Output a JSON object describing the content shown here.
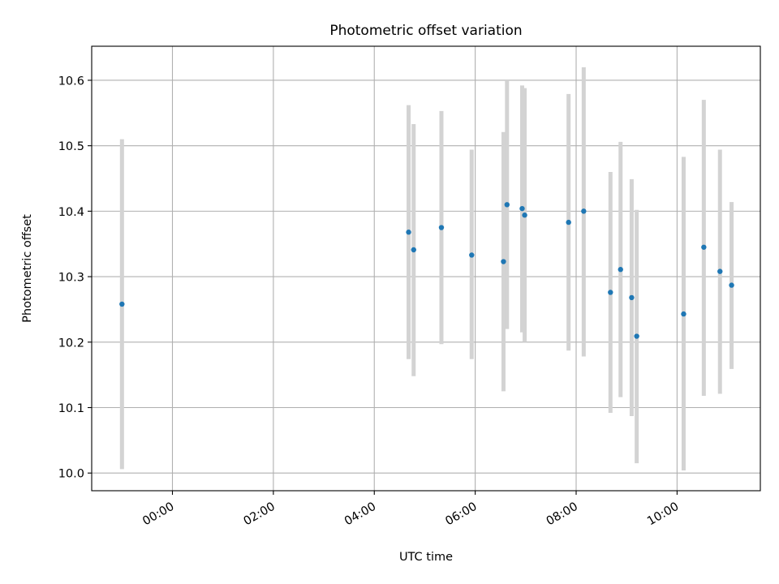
{
  "chart_data": {
    "type": "scatter",
    "title": "Photometric offset variation",
    "xlabel": "UTC time",
    "ylabel": "Photometric offset",
    "x_unit": "hours UTC",
    "xlim": [
      -1.6,
      11.65
    ],
    "ylim": [
      9.973,
      10.652
    ],
    "grid": true,
    "x_ticks": [
      {
        "label": "00:00",
        "value": 0
      },
      {
        "label": "02:00",
        "value": 2
      },
      {
        "label": "04:00",
        "value": 4
      },
      {
        "label": "06:00",
        "value": 6
      },
      {
        "label": "08:00",
        "value": 8
      },
      {
        "label": "10:00",
        "value": 10
      }
    ],
    "y_ticks": [
      {
        "label": "10.0",
        "value": 10.0
      },
      {
        "label": "10.1",
        "value": 10.1
      },
      {
        "label": "10.2",
        "value": 10.2
      },
      {
        "label": "10.3",
        "value": 10.3
      },
      {
        "label": "10.4",
        "value": 10.4
      },
      {
        "label": "10.5",
        "value": 10.5
      },
      {
        "label": "10.6",
        "value": 10.6
      }
    ],
    "colors": {
      "marker": "#1f77b4",
      "errorbar": "#d3d3d3",
      "grid": "#b0b0b0"
    },
    "points": [
      {
        "x": -1.0,
        "y": 10.258,
        "ylo": 10.006,
        "yhi": 10.51
      },
      {
        "x": 4.68,
        "y": 10.368,
        "ylo": 10.174,
        "yhi": 10.562
      },
      {
        "x": 4.78,
        "y": 10.341,
        "ylo": 10.148,
        "yhi": 10.533
      },
      {
        "x": 5.33,
        "y": 10.375,
        "ylo": 10.197,
        "yhi": 10.553
      },
      {
        "x": 5.93,
        "y": 10.333,
        "ylo": 10.174,
        "yhi": 10.494
      },
      {
        "x": 6.56,
        "y": 10.323,
        "ylo": 10.125,
        "yhi": 10.521
      },
      {
        "x": 6.63,
        "y": 10.41,
        "ylo": 10.22,
        "yhi": 10.6
      },
      {
        "x": 6.93,
        "y": 10.404,
        "ylo": 10.215,
        "yhi": 10.592
      },
      {
        "x": 6.98,
        "y": 10.394,
        "ylo": 10.2,
        "yhi": 10.588
      },
      {
        "x": 7.85,
        "y": 10.383,
        "ylo": 10.187,
        "yhi": 10.579
      },
      {
        "x": 8.15,
        "y": 10.4,
        "ylo": 10.178,
        "yhi": 10.62
      },
      {
        "x": 8.68,
        "y": 10.276,
        "ylo": 10.092,
        "yhi": 10.46
      },
      {
        "x": 8.88,
        "y": 10.311,
        "ylo": 10.116,
        "yhi": 10.506
      },
      {
        "x": 9.1,
        "y": 10.268,
        "ylo": 10.087,
        "yhi": 10.449
      },
      {
        "x": 9.2,
        "y": 10.209,
        "ylo": 10.015,
        "yhi": 10.402
      },
      {
        "x": 10.13,
        "y": 10.243,
        "ylo": 10.004,
        "yhi": 10.483
      },
      {
        "x": 10.53,
        "y": 10.345,
        "ylo": 10.118,
        "yhi": 10.57
      },
      {
        "x": 10.85,
        "y": 10.308,
        "ylo": 10.121,
        "yhi": 10.494
      },
      {
        "x": 11.08,
        "y": 10.287,
        "ylo": 10.159,
        "yhi": 10.414
      }
    ]
  }
}
